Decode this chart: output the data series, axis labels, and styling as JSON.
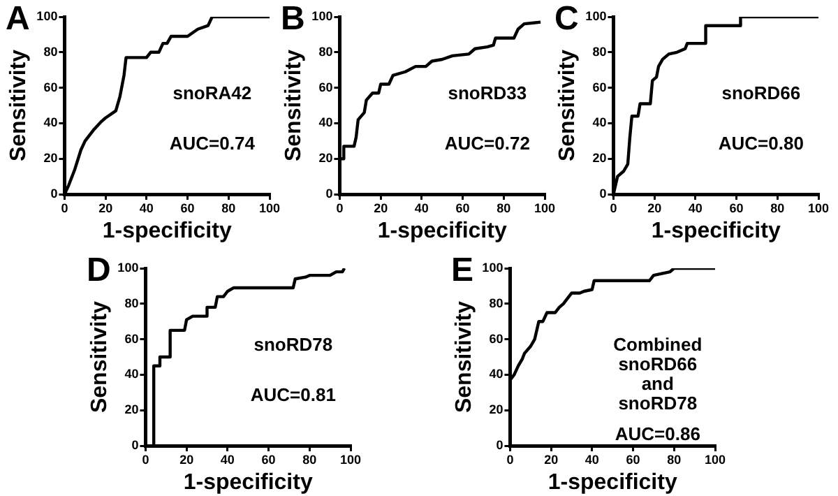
{
  "chart_data": [
    {
      "type": "line",
      "title": "A",
      "xlabel": "1-specificity",
      "ylabel": "Sensitivity",
      "annotations": [
        "snoRA42",
        "AUC=0.74"
      ],
      "xlim": [
        0,
        100
      ],
      "ylim": [
        0,
        100
      ],
      "xticks": [
        0,
        20,
        40,
        60,
        80,
        100
      ],
      "yticks": [
        0,
        20,
        40,
        60,
        80,
        100
      ],
      "grid": false,
      "legend": false,
      "marker": "none",
      "line_style": "solid",
      "series": [
        {
          "color": "#000000",
          "x": [
            0,
            2,
            5,
            8,
            10,
            14,
            18,
            20,
            25,
            27,
            29,
            30,
            40,
            42,
            46,
            48,
            50,
            52,
            60,
            65,
            70,
            72,
            100
          ],
          "values": [
            0,
            5,
            14,
            25,
            30,
            36,
            41,
            43,
            47,
            55,
            67,
            77,
            77,
            80,
            80,
            85,
            85,
            89,
            89,
            93,
            95,
            100,
            100
          ]
        }
      ]
    },
    {
      "type": "line",
      "title": "B",
      "xlabel": "1-specificity",
      "ylabel": "Sensitivity",
      "annotations": [
        "snoRD33",
        "AUC=0.72"
      ],
      "xlim": [
        0,
        100
      ],
      "ylim": [
        0,
        100
      ],
      "xticks": [
        0,
        20,
        40,
        60,
        80,
        100
      ],
      "yticks": [
        0,
        20,
        40,
        60,
        80,
        100
      ],
      "grid": false,
      "legend": false,
      "marker": "none",
      "line_style": "solid",
      "series": [
        {
          "color": "#000000",
          "x": [
            0,
            0,
            2,
            2,
            7,
            8,
            9,
            12,
            13,
            16,
            19,
            20,
            24,
            26,
            32,
            37,
            42,
            45,
            50,
            55,
            63,
            66,
            72,
            75,
            76,
            85,
            87,
            90,
            98
          ],
          "values": [
            0,
            20,
            20,
            27,
            27,
            32,
            42,
            46,
            53,
            57,
            57,
            62,
            62,
            67,
            69,
            72,
            72,
            75,
            76,
            78,
            79,
            82,
            83,
            84,
            88,
            88,
            93,
            96,
            97
          ]
        }
      ]
    },
    {
      "type": "line",
      "title": "C",
      "xlabel": "1-specificity",
      "ylabel": "Sensitivity",
      "annotations": [
        "snoRD66",
        "AUC=0.80"
      ],
      "xlim": [
        0,
        100
      ],
      "ylim": [
        0,
        100
      ],
      "xticks": [
        0,
        20,
        40,
        60,
        80,
        100
      ],
      "yticks": [
        0,
        20,
        40,
        60,
        80,
        100
      ],
      "grid": false,
      "legend": false,
      "marker": "none",
      "line_style": "solid",
      "series": [
        {
          "color": "#000000",
          "x": [
            0,
            1,
            2,
            5,
            7,
            8,
            9,
            12,
            13,
            18,
            19,
            21,
            22,
            24,
            27,
            31,
            35,
            36,
            45,
            45,
            62,
            62,
            100
          ],
          "values": [
            0,
            5,
            10,
            13,
            17,
            32,
            44,
            44,
            51,
            51,
            64,
            66,
            72,
            76,
            79,
            80,
            82,
            85,
            85,
            95,
            95,
            100,
            100
          ]
        }
      ]
    },
    {
      "type": "line",
      "title": "D",
      "xlabel": "1-specificity",
      "ylabel": "Sensitivity",
      "annotations": [
        "snoRD78",
        "AUC=0.81"
      ],
      "xlim": [
        0,
        100
      ],
      "ylim": [
        0,
        100
      ],
      "xticks": [
        0,
        20,
        40,
        60,
        80,
        100
      ],
      "yticks": [
        0,
        20,
        40,
        60,
        80,
        100
      ],
      "grid": false,
      "legend": false,
      "marker": "none",
      "line_style": "solid",
      "series": [
        {
          "color": "#000000",
          "x": [
            4,
            4,
            7,
            7,
            12,
            12,
            19,
            20,
            23,
            30,
            30,
            34,
            35,
            38,
            40,
            43,
            72,
            73,
            78,
            80,
            90,
            93,
            96,
            97
          ],
          "values": [
            0,
            45,
            45,
            50,
            50,
            65,
            65,
            71,
            73,
            73,
            78,
            78,
            84,
            84,
            87,
            89,
            89,
            94,
            95,
            96,
            96,
            98,
            98,
            100
          ]
        }
      ]
    },
    {
      "type": "line",
      "title": "E",
      "xlabel": "1-specificity",
      "ylabel": "Sensitivity",
      "annotations": [
        "Combined snoRD66 and snoRD78",
        "AUC=0.86"
      ],
      "xlim": [
        0,
        100
      ],
      "ylim": [
        0,
        100
      ],
      "xticks": [
        0,
        20,
        40,
        60,
        80,
        100
      ],
      "yticks": [
        0,
        20,
        40,
        60,
        80,
        100
      ],
      "grid": false,
      "legend": false,
      "marker": "none",
      "line_style": "solid",
      "series": [
        {
          "color": "#000000",
          "x": [
            0,
            2,
            4,
            6,
            7,
            10,
            12,
            14,
            16,
            18,
            22,
            24,
            26,
            28,
            30,
            34,
            36,
            40,
            41,
            68,
            70,
            74,
            78,
            80,
            100
          ],
          "values": [
            37,
            40,
            45,
            49,
            52,
            56,
            60,
            70,
            70,
            75,
            75,
            78,
            80,
            83,
            86,
            86,
            87,
            88,
            93,
            93,
            96,
            97,
            98,
            100,
            100
          ]
        }
      ]
    }
  ]
}
